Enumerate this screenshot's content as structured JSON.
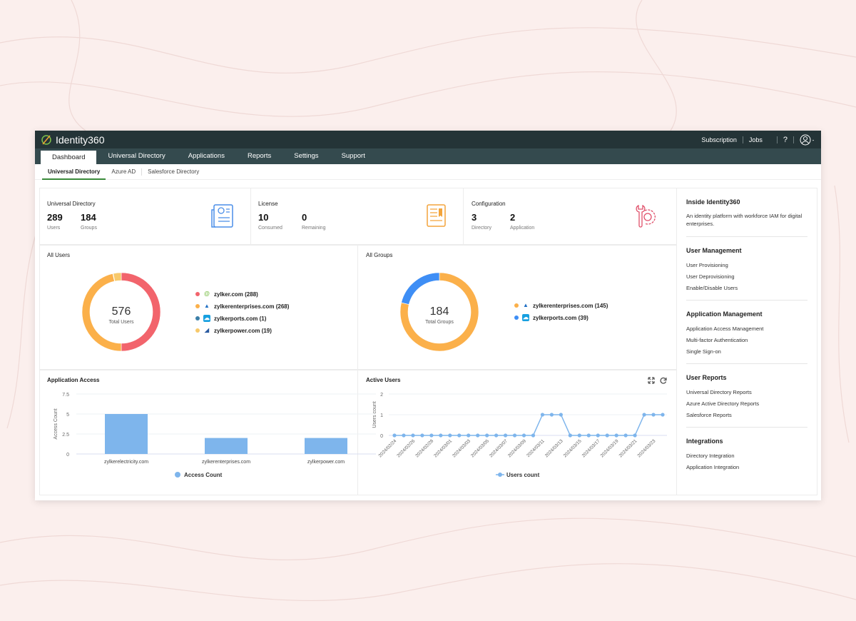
{
  "app": {
    "name": "Identity360",
    "header_links": [
      "Subscription",
      "Jobs"
    ],
    "help": "?"
  },
  "nav": {
    "tabs": [
      "Dashboard",
      "Universal Directory",
      "Applications",
      "Reports",
      "Settings",
      "Support"
    ],
    "active": "Dashboard"
  },
  "subnav": {
    "tabs": [
      "Universal Directory",
      "Azure AD",
      "Salesforce Directory"
    ],
    "active": "Universal Directory"
  },
  "cards": [
    {
      "title": "Universal Directory",
      "stats": [
        {
          "value": "289",
          "label": "Users"
        },
        {
          "value": "184",
          "label": "Groups"
        }
      ],
      "icon": "directory-document-icon",
      "color": "#4a8ee8"
    },
    {
      "title": "License",
      "stats": [
        {
          "value": "10",
          "label": "Consumed"
        },
        {
          "value": "0",
          "label": "Remaining"
        }
      ],
      "icon": "license-certificate-icon",
      "color": "#f3a43b"
    },
    {
      "title": "Configuration",
      "stats": [
        {
          "value": "3",
          "label": "Directory"
        },
        {
          "value": "2",
          "label": "Application"
        }
      ],
      "icon": "wrench-gear-icon",
      "color": "#e0506a"
    }
  ],
  "all_users": {
    "title": "All Users",
    "center_value": "576",
    "center_label": "Total Users",
    "legend": [
      {
        "label": "zylker.com (288)",
        "color": "#f2646c",
        "icon": "zylker-icon"
      },
      {
        "label": "zylkerenterprises.com (268)",
        "color": "#fbb04a",
        "icon": "azure-icon"
      },
      {
        "label": "zylkerports.com (1)",
        "color": "#3c7fa8",
        "icon": "salesforce-icon"
      },
      {
        "label": "zylkerpower.com (19)",
        "color": "#f7c96b",
        "icon": "power-icon"
      }
    ]
  },
  "all_groups": {
    "title": "All Groups",
    "center_value": "184",
    "center_label": "Total Groups",
    "legend": [
      {
        "label": "zylkerenterprises.com (145)",
        "color": "#fbb04a",
        "icon": "azure-icon"
      },
      {
        "label": "zylkerports.com (39)",
        "color": "#3e8ef5",
        "icon": "salesforce-icon"
      }
    ]
  },
  "app_access": {
    "title": "Application Access"
  },
  "active_users": {
    "title": "Active Users"
  },
  "chart_data": [
    {
      "type": "pie",
      "title": "All Users",
      "categories": [
        "zylker.com",
        "zylkerenterprises.com",
        "zylkerports.com",
        "zylkerpower.com"
      ],
      "values": [
        288,
        268,
        1,
        19
      ],
      "colors": [
        "#f2646c",
        "#fbb04a",
        "#3c7fa8",
        "#f7c96b"
      ]
    },
    {
      "type": "pie",
      "title": "All Groups",
      "categories": [
        "zylkerenterprises.com",
        "zylkerports.com"
      ],
      "values": [
        145,
        39
      ],
      "colors": [
        "#fbb04a",
        "#3e8ef5"
      ]
    },
    {
      "type": "bar",
      "title": "Application Access",
      "categories": [
        "zylkerelectricity.com",
        "zylkerenterprises.com",
        "zylkerpower.com"
      ],
      "series": [
        {
          "name": "Access Count",
          "values": [
            5,
            2,
            2
          ]
        }
      ],
      "ylabel": "Access Count",
      "ylim": [
        0,
        7.5
      ],
      "yticks": [
        "0",
        "2.5",
        "5",
        "7.5"
      ],
      "grid": true,
      "legend": "bottom",
      "color": "#7eb5ec"
    },
    {
      "type": "line",
      "title": "Active Users",
      "x": [
        "2024/02/24",
        "2024/02/25",
        "2024/02/26",
        "2024/02/27",
        "2024/02/28",
        "2024/02/29",
        "2024/03/01",
        "2024/03/02",
        "2024/03/03",
        "2024/03/04",
        "2024/03/05",
        "2024/03/06",
        "2024/03/07",
        "2024/03/08",
        "2024/03/09",
        "2024/03/10",
        "2024/03/11",
        "2024/03/12",
        "2024/03/13",
        "2024/03/14",
        "2024/03/15",
        "2024/03/16",
        "2024/03/17",
        "2024/03/18",
        "2024/03/19",
        "2024/03/20",
        "2024/03/21",
        "2024/03/22",
        "2024/03/23",
        "2024/03/24"
      ],
      "series": [
        {
          "name": "Users count",
          "values": [
            0,
            0,
            0,
            0,
            0,
            0,
            0,
            0,
            0,
            0,
            0,
            0,
            0,
            0,
            0,
            0,
            1,
            1,
            1,
            0,
            0,
            0,
            0,
            0,
            0,
            0,
            0,
            1,
            1,
            1
          ]
        }
      ],
      "ylabel": "Users count",
      "ylim": [
        0,
        2
      ],
      "yticks": [
        "0",
        "1",
        "2"
      ],
      "grid": true,
      "legend": "bottom",
      "color": "#7eb5ec"
    }
  ],
  "side": {
    "title": "Inside Identity360",
    "desc": "An identity platform with workforce IAM for digital enterprises.",
    "sections": [
      {
        "title": "User Management",
        "items": [
          "User Provisioning",
          "User Deprovisioning",
          "Enable/Disable Users"
        ]
      },
      {
        "title": "Application Management",
        "items": [
          "Application Access Management",
          "Multi-factor Authentication",
          "Single Sign-on"
        ]
      },
      {
        "title": "User Reports",
        "items": [
          "Universal Directory Reports",
          "Azure Active Directory Reports",
          "Salesforce Reports"
        ]
      },
      {
        "title": "Integrations",
        "items": [
          "Directory Integration",
          "Application Integration"
        ]
      }
    ]
  }
}
